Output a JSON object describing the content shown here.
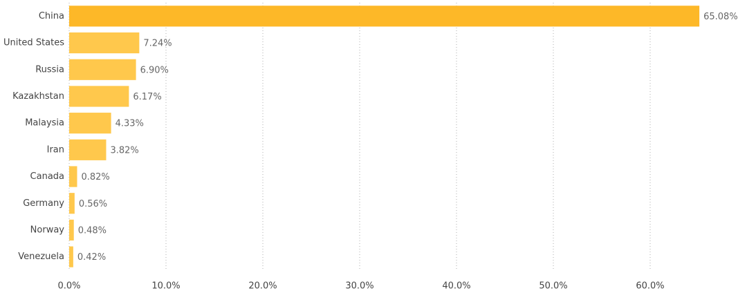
{
  "chart_data": {
    "type": "hbar",
    "categories": [
      "China",
      "United States",
      "Russia",
      "Kazakhstan",
      "Malaysia",
      "Iran",
      "Canada",
      "Germany",
      "Norway",
      "Venezuela"
    ],
    "values": [
      65.08,
      7.24,
      6.9,
      6.17,
      4.33,
      3.82,
      0.82,
      0.56,
      0.48,
      0.42
    ],
    "value_labels": [
      "65.08%",
      "7.24%",
      "6.90%",
      "6.17%",
      "4.33%",
      "3.82%",
      "0.82%",
      "0.56%",
      "0.48%",
      "0.42%"
    ],
    "colors": [
      "#fdb828",
      "#ffc84c",
      "#ffc84c",
      "#ffc84c",
      "#ffc84c",
      "#ffc84c",
      "#ffc84c",
      "#ffc84c",
      "#ffc84c",
      "#ffc84c"
    ],
    "xlim": [
      0,
      70
    ],
    "xticks": [
      {
        "value": 0,
        "label": "0.0%"
      },
      {
        "value": 10,
        "label": "10.0%"
      },
      {
        "value": 20,
        "label": "20.0%"
      },
      {
        "value": 30,
        "label": "30.0%"
      },
      {
        "value": 40,
        "label": "40.0%"
      },
      {
        "value": 50,
        "label": "50.0%"
      },
      {
        "value": 60,
        "label": "60.0%"
      }
    ],
    "grid": true
  }
}
